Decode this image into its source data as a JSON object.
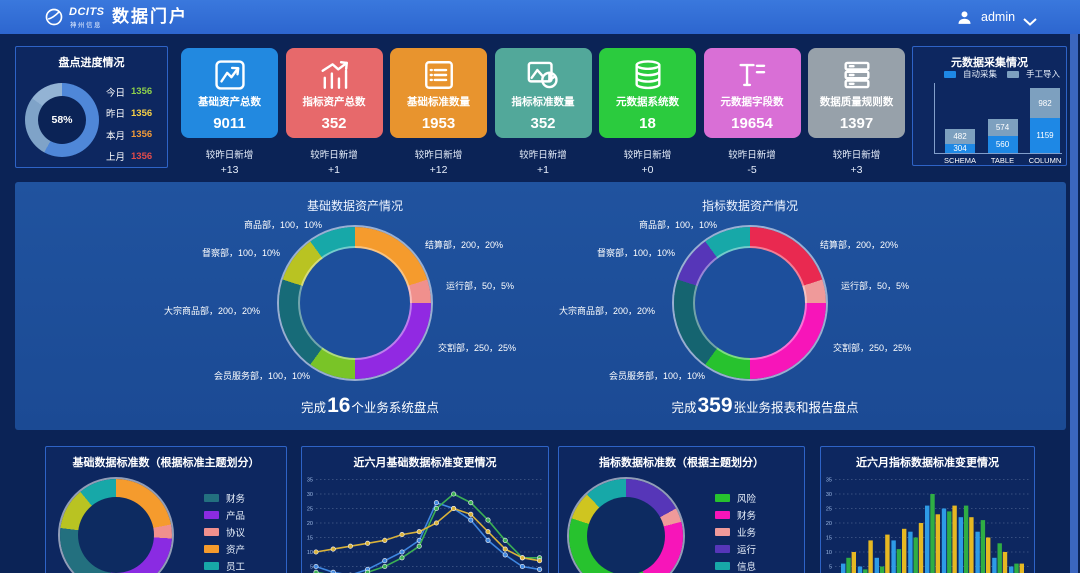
{
  "header": {
    "logo_primary": "DCITS",
    "logo_secondary": "神州信息",
    "title": "数据门户",
    "user": {
      "name": "admin"
    }
  },
  "progress_panel": {
    "title": "盘点进度情况",
    "center_label": "58%",
    "rows": [
      {
        "label": "今日",
        "value": "1356",
        "color": "#8ed14b"
      },
      {
        "label": "昨日",
        "value": "1356",
        "color": "#f7d046"
      },
      {
        "label": "本月",
        "value": "1356",
        "color": "#f29b38"
      },
      {
        "label": "上月",
        "value": "1356",
        "color": "#e14b4b"
      }
    ]
  },
  "kpi_cards": [
    {
      "label": "基础资产总数",
      "value": "9011",
      "delta_label": "较昨日新增",
      "delta": "+13",
      "color": "#2289e0",
      "icon": "line-chart-icon"
    },
    {
      "label": "指标资产总数",
      "value": "352",
      "delta_label": "较昨日新增",
      "delta": "+1",
      "color": "#e7696b",
      "icon": "bar-chart-icon"
    },
    {
      "label": "基础标准数量",
      "value": "1953",
      "delta_label": "较昨日新增",
      "delta": "+12",
      "color": "#e8942e",
      "icon": "list-icon"
    },
    {
      "label": "指标标准数量",
      "value": "352",
      "delta_label": "较昨日新增",
      "delta": "+1",
      "color": "#52a89a",
      "icon": "image-pie-icon"
    },
    {
      "label": "元数据系统数",
      "value": "18",
      "delta_label": "较昨日新增",
      "delta": "+0",
      "color": "#2bcb3e",
      "icon": "database-icon"
    },
    {
      "label": "元数据字段数",
      "value": "19654",
      "delta_label": "较昨日新增",
      "delta": "-5",
      "color": "#d96fd6",
      "icon": "field-icon"
    },
    {
      "label": "数据质量规则数",
      "value": "1397",
      "delta_label": "较昨日新增",
      "delta": "+3",
      "color": "#97a1aa",
      "icon": "server-icon"
    }
  ],
  "chart_data": [
    {
      "id": "progress_donut",
      "type": "pie",
      "title": "盘点进度情况",
      "center_label": "58%",
      "slices": [
        {
          "label": "",
          "value": 58,
          "color": "#4f87d8"
        },
        {
          "label": "",
          "value": 27,
          "color": "#7fa3c8"
        },
        {
          "label": "",
          "value": 15,
          "color": "#93b3d4"
        }
      ]
    },
    {
      "id": "meta_collect",
      "type": "bar",
      "stacked": true,
      "title": "元数据采集情况",
      "categories": [
        "SCHEMA",
        "TABLE",
        "COLUMN"
      ],
      "series": [
        {
          "name": "自动采集",
          "color": "#1e88e5",
          "values": [
            304,
            560,
            1159
          ]
        },
        {
          "name": "手工导入",
          "color": "#7da0bf",
          "values": [
            482,
            574,
            982
          ]
        }
      ],
      "legend_position": "top"
    },
    {
      "id": "base_assets",
      "type": "pie",
      "title": "基础数据资产情况",
      "caption": {
        "prefix": "完成",
        "number": "16",
        "suffix": "个业务系统盘点"
      },
      "slices": [
        {
          "label": "结算部",
          "value": 200,
          "pct": "20%",
          "color": "#f59b2d"
        },
        {
          "label": "运行部",
          "value": 50,
          "pct": "5%",
          "color": "#f0908d"
        },
        {
          "label": "交割部",
          "value": 250,
          "pct": "25%",
          "color": "#9129e2"
        },
        {
          "label": "会员服务部",
          "value": 100,
          "pct": "10%",
          "color": "#79c427"
        },
        {
          "label": "大宗商品部",
          "value": 200,
          "pct": "20%",
          "color": "#176b78"
        },
        {
          "label": "督察部",
          "value": 100,
          "pct": "10%",
          "color": "#b9c322"
        },
        {
          "label": "商品部",
          "value": 100,
          "pct": "10%",
          "color": "#17a8a8"
        }
      ]
    },
    {
      "id": "indicator_assets",
      "type": "pie",
      "title": "指标数据资产情况",
      "caption": {
        "prefix": "完成",
        "number": "359",
        "suffix": "张业务报表和报告盘点"
      },
      "slices": [
        {
          "label": "结算部",
          "value": 200,
          "pct": "20%",
          "color": "#e92950"
        },
        {
          "label": "运行部",
          "value": 50,
          "pct": "5%",
          "color": "#ef9a9a"
        },
        {
          "label": "交割部",
          "value": 250,
          "pct": "25%",
          "color": "#f715b9"
        },
        {
          "label": "会员服务部",
          "value": 100,
          "pct": "10%",
          "color": "#27c22e"
        },
        {
          "label": "大宗商品部",
          "value": 200,
          "pct": "20%",
          "color": "#156470"
        },
        {
          "label": "督察部",
          "value": 100,
          "pct": "10%",
          "color": "#5636b8"
        },
        {
          "label": "商品部",
          "value": 100,
          "pct": "10%",
          "color": "#17a8a8"
        }
      ]
    },
    {
      "id": "std_base",
      "type": "pie",
      "title": "基础数据标准数（根据标准主题划分）",
      "legend": [
        {
          "label": "财务",
          "color": "#23707f"
        },
        {
          "label": "产品",
          "color": "#8a2be2"
        },
        {
          "label": "协议",
          "color": "#f0908d"
        },
        {
          "label": "资产",
          "color": "#f59b2d"
        },
        {
          "label": "员工",
          "color": "#17a8a8"
        }
      ],
      "slices": [
        {
          "label": "资产",
          "value": 22,
          "color": "#f59b2d"
        },
        {
          "label": "协议",
          "value": 4,
          "color": "#f0908d"
        },
        {
          "label": "产品",
          "value": 26,
          "color": "#8a2be2"
        },
        {
          "label": "财务",
          "value": 25,
          "color": "#23707f"
        },
        {
          "label": "",
          "value": 12,
          "color": "#b9c322"
        },
        {
          "label": "员工",
          "value": 11,
          "color": "#17a8a8"
        }
      ]
    },
    {
      "id": "std_base_trend",
      "type": "line",
      "title": "近六月基础数据标准变更情况",
      "ylim": [
        0,
        35
      ],
      "yticks": [
        5,
        10,
        15,
        20,
        25,
        30,
        35
      ],
      "grid": "dotted",
      "series": [
        {
          "name": "",
          "color": "#3f87e0",
          "values": [
            5,
            3,
            2,
            4,
            7,
            10,
            14,
            27,
            25,
            21,
            14,
            9,
            5,
            4
          ]
        },
        {
          "name": "",
          "color": "#3cb054",
          "values": [
            3,
            2,
            1,
            3,
            5,
            8,
            12,
            25,
            30,
            27,
            21,
            14,
            8,
            8
          ]
        },
        {
          "name": "",
          "color": "#d9b23a",
          "values": [
            10,
            11,
            12,
            13,
            14,
            16,
            17,
            20,
            25,
            23,
            17,
            11,
            8,
            7
          ]
        }
      ]
    },
    {
      "id": "std_indicator",
      "type": "pie",
      "title": "指标数据标准数（根据主题划分）",
      "legend": [
        {
          "label": "风险",
          "color": "#27c22e"
        },
        {
          "label": "财务",
          "color": "#f715b9"
        },
        {
          "label": "业务",
          "color": "#ef9a9a"
        },
        {
          "label": "运行",
          "color": "#5636b8"
        },
        {
          "label": "信息",
          "color": "#17a8a8"
        }
      ],
      "slices": [
        {
          "label": "运行",
          "value": 17,
          "color": "#5636b8"
        },
        {
          "label": "业务",
          "value": 4,
          "color": "#ef9a9a"
        },
        {
          "label": "财务",
          "value": 22,
          "color": "#f715b9"
        },
        {
          "label": "风险",
          "value": 37,
          "color": "#27c22e"
        },
        {
          "label": "",
          "value": 8,
          "color": "#cfc520"
        },
        {
          "label": "信息",
          "value": 12,
          "color": "#17a8a8"
        }
      ]
    },
    {
      "id": "std_indicator_trend",
      "type": "bar",
      "stacked": false,
      "title": "近六月指标数据标准变更情况",
      "ylim": [
        0,
        35
      ],
      "yticks": [
        5,
        10,
        15,
        20,
        25,
        30,
        35
      ],
      "grid": "dotted",
      "series": [
        {
          "name": "",
          "color": "#2e9be6",
          "values": [
            6,
            5,
            8,
            14,
            17,
            26,
            25,
            22,
            17,
            8,
            5
          ]
        },
        {
          "name": "",
          "color": "#2fae44",
          "values": [
            8,
            4,
            5,
            11,
            15,
            30,
            24,
            26,
            21,
            13,
            6
          ]
        },
        {
          "name": "",
          "color": "#e6b822",
          "values": [
            10,
            14,
            16,
            18,
            20,
            23,
            26,
            22,
            15,
            10,
            6
          ]
        }
      ]
    }
  ]
}
